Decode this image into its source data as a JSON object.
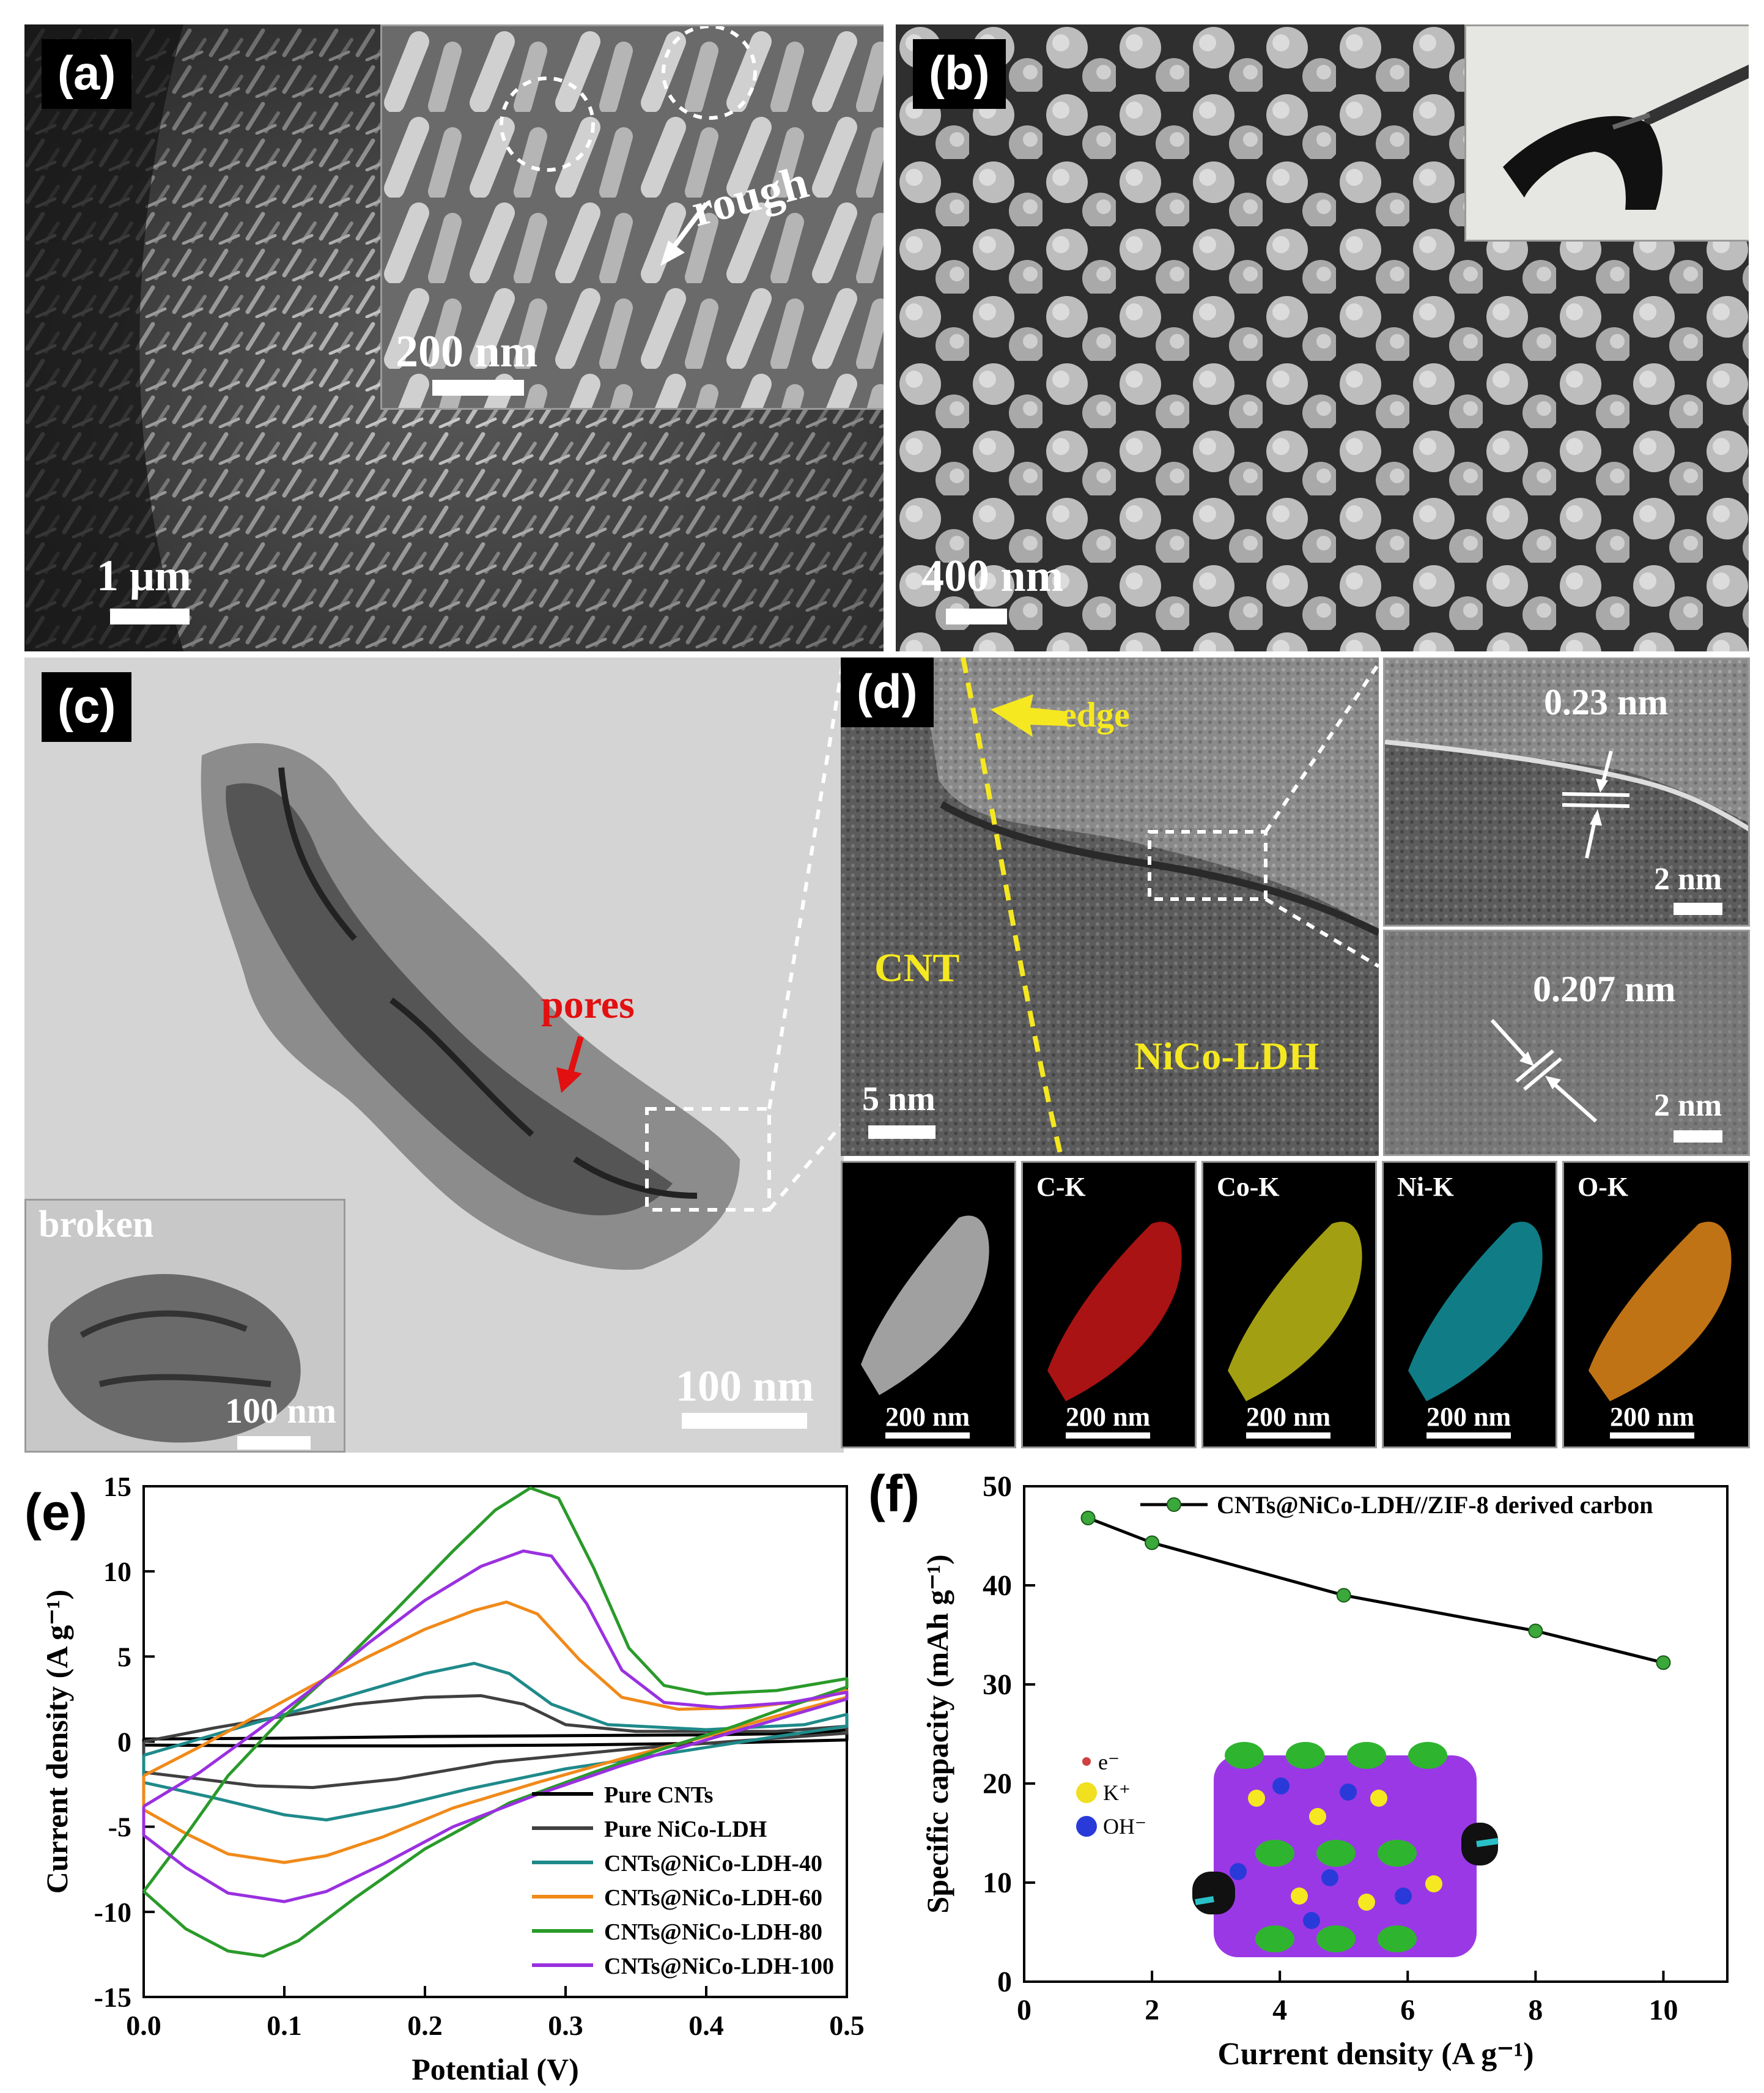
{
  "panels": {
    "a": {
      "letter": "(a)",
      "scale_bar": "1 μm",
      "inset_scale_bar": "200 nm",
      "inset_annotation": "rough"
    },
    "b": {
      "letter": "(b)",
      "scale_bar": "400 nm"
    },
    "c": {
      "letter": "(c)",
      "scale_bar": "100 nm",
      "annotation": "pores",
      "inset_label": "broken",
      "inset_scale_bar": "100 nm"
    },
    "d": {
      "letter": "(d)",
      "edge_label": "edge",
      "cnt_label": "CNT",
      "ldh_label": "NiCo-LDH",
      "scale_bar": "5 nm",
      "hr_top_spacing": "0.23 nm",
      "hr_top_scale": "2 nm",
      "hr_bottom_spacing": "0.207 nm",
      "hr_bottom_scale": "2 nm",
      "maps": [
        {
          "title": "",
          "scale": "200 nm",
          "color": "#ffffff"
        },
        {
          "title": "C-K",
          "scale": "200 nm",
          "color": "#e21a1a"
        },
        {
          "title": "Co-K",
          "scale": "200 nm",
          "color": "#e8e21a"
        },
        {
          "title": "Ni-K",
          "scale": "200 nm",
          "color": "#1ad0e0"
        },
        {
          "title": "O-K",
          "scale": "200 nm",
          "color": "#f0901a"
        }
      ]
    },
    "e": {
      "letter": "(e)"
    },
    "f": {
      "letter": "(f)",
      "inset_legend": [
        "e⁻",
        "K⁺",
        "OH⁻"
      ]
    }
  },
  "chart_data": [
    {
      "type": "line",
      "panel": "e",
      "xlabel": "Potential (V)",
      "ylabel": "Current density (A g⁻¹)",
      "xlim": [
        0.0,
        0.5
      ],
      "ylim": [
        -15,
        15
      ],
      "xticks": [
        "0.0",
        "0.1",
        "0.2",
        "0.3",
        "0.4",
        "0.5"
      ],
      "yticks": [
        "15",
        "10",
        "5",
        "0",
        "-5",
        "-10",
        "-15"
      ],
      "legend_position": "bottom-right",
      "grid": false,
      "series": [
        {
          "name": "Pure CNTs",
          "color": "#000000",
          "anodic": [
            [
              0.0,
              0.15
            ],
            [
              0.1,
              0.2
            ],
            [
              0.2,
              0.3
            ],
            [
              0.3,
              0.35
            ],
            [
              0.4,
              0.4
            ],
            [
              0.48,
              0.5
            ],
            [
              0.5,
              0.7
            ]
          ],
          "cathodic": [
            [
              0.5,
              0.1
            ],
            [
              0.4,
              -0.1
            ],
            [
              0.3,
              -0.2
            ],
            [
              0.2,
              -0.25
            ],
            [
              0.1,
              -0.25
            ],
            [
              0.0,
              -0.2
            ]
          ]
        },
        {
          "name": "Pure NiCo-LDH",
          "color": "#404040",
          "anodic": [
            [
              0.0,
              0.0
            ],
            [
              0.05,
              0.8
            ],
            [
              0.1,
              1.5
            ],
            [
              0.15,
              2.2
            ],
            [
              0.2,
              2.6
            ],
            [
              0.24,
              2.7
            ],
            [
              0.27,
              2.2
            ],
            [
              0.3,
              1.0
            ],
            [
              0.35,
              0.6
            ],
            [
              0.45,
              0.6
            ],
            [
              0.5,
              0.9
            ]
          ],
          "cathodic": [
            [
              0.5,
              0.5
            ],
            [
              0.45,
              0.2
            ],
            [
              0.35,
              -0.4
            ],
            [
              0.25,
              -1.2
            ],
            [
              0.18,
              -2.2
            ],
            [
              0.12,
              -2.7
            ],
            [
              0.08,
              -2.6
            ],
            [
              0.04,
              -2.2
            ],
            [
              0.0,
              -1.8
            ]
          ]
        },
        {
          "name": "CNTs@NiCo-LDH-40",
          "color": "#1f8a8a",
          "anodic": [
            [
              0.0,
              -0.8
            ],
            [
              0.05,
              0.4
            ],
            [
              0.1,
              1.6
            ],
            [
              0.15,
              2.8
            ],
            [
              0.2,
              4.0
            ],
            [
              0.235,
              4.6
            ],
            [
              0.26,
              4.0
            ],
            [
              0.29,
              2.2
            ],
            [
              0.33,
              1.0
            ],
            [
              0.4,
              0.7
            ],
            [
              0.47,
              1.0
            ],
            [
              0.5,
              1.6
            ]
          ],
          "cathodic": [
            [
              0.5,
              0.9
            ],
            [
              0.45,
              0.3
            ],
            [
              0.38,
              -0.6
            ],
            [
              0.3,
              -1.6
            ],
            [
              0.23,
              -2.8
            ],
            [
              0.18,
              -3.8
            ],
            [
              0.13,
              -4.6
            ],
            [
              0.1,
              -4.3
            ],
            [
              0.05,
              -3.3
            ],
            [
              0.0,
              -2.4
            ]
          ]
        },
        {
          "name": "CNTs@NiCo-LDH-60",
          "color": "#f08a1a",
          "anodic": [
            [
              0.0,
              -2.0
            ],
            [
              0.04,
              -0.3
            ],
            [
              0.08,
              1.5
            ],
            [
              0.12,
              3.3
            ],
            [
              0.16,
              5.0
            ],
            [
              0.2,
              6.6
            ],
            [
              0.235,
              7.7
            ],
            [
              0.258,
              8.2
            ],
            [
              0.28,
              7.5
            ],
            [
              0.31,
              4.8
            ],
            [
              0.34,
              2.6
            ],
            [
              0.38,
              1.9
            ],
            [
              0.43,
              2.0
            ],
            [
              0.48,
              2.5
            ],
            [
              0.5,
              3.0
            ]
          ],
          "cathodic": [
            [
              0.5,
              2.6
            ],
            [
              0.45,
              1.5
            ],
            [
              0.4,
              0.3
            ],
            [
              0.34,
              -1.0
            ],
            [
              0.28,
              -2.4
            ],
            [
              0.22,
              -3.9
            ],
            [
              0.17,
              -5.6
            ],
            [
              0.13,
              -6.7
            ],
            [
              0.1,
              -7.1
            ],
            [
              0.06,
              -6.6
            ],
            [
              0.03,
              -5.4
            ],
            [
              0.0,
              -4.0
            ]
          ]
        },
        {
          "name": "CNTs@NiCo-LDH-80",
          "color": "#2a9a2a",
          "anodic": [
            [
              0.0,
              -8.8
            ],
            [
              0.03,
              -5.5
            ],
            [
              0.06,
              -2.0
            ],
            [
              0.1,
              1.5
            ],
            [
              0.14,
              4.5
            ],
            [
              0.18,
              7.8
            ],
            [
              0.22,
              11.2
            ],
            [
              0.25,
              13.6
            ],
            [
              0.275,
              14.9
            ],
            [
              0.295,
              14.3
            ],
            [
              0.32,
              10.2
            ],
            [
              0.345,
              5.5
            ],
            [
              0.37,
              3.3
            ],
            [
              0.4,
              2.8
            ],
            [
              0.45,
              3.0
            ],
            [
              0.5,
              3.7
            ]
          ],
          "cathodic": [
            [
              0.5,
              3.2
            ],
            [
              0.46,
              2.1
            ],
            [
              0.42,
              0.9
            ],
            [
              0.37,
              -0.4
            ],
            [
              0.32,
              -1.8
            ],
            [
              0.26,
              -3.6
            ],
            [
              0.2,
              -6.3
            ],
            [
              0.15,
              -9.2
            ],
            [
              0.11,
              -11.7
            ],
            [
              0.085,
              -12.6
            ],
            [
              0.06,
              -12.3
            ],
            [
              0.03,
              -11.0
            ],
            [
              0.0,
              -8.8
            ]
          ]
        },
        {
          "name": "CNTs@NiCo-LDH-100",
          "color": "#9a30e0",
          "anodic": [
            [
              0.0,
              -3.8
            ],
            [
              0.04,
              -1.8
            ],
            [
              0.08,
              0.6
            ],
            [
              0.12,
              3.1
            ],
            [
              0.16,
              5.8
            ],
            [
              0.2,
              8.3
            ],
            [
              0.24,
              10.3
            ],
            [
              0.27,
              11.2
            ],
            [
              0.29,
              10.9
            ],
            [
              0.315,
              8.1
            ],
            [
              0.34,
              4.2
            ],
            [
              0.37,
              2.3
            ],
            [
              0.41,
              2.0
            ],
            [
              0.46,
              2.3
            ],
            [
              0.5,
              2.9
            ]
          ],
          "cathodic": [
            [
              0.5,
              2.5
            ],
            [
              0.45,
              1.3
            ],
            [
              0.4,
              0.1
            ],
            [
              0.34,
              -1.4
            ],
            [
              0.28,
              -3.1
            ],
            [
              0.22,
              -5.0
            ],
            [
              0.17,
              -7.2
            ],
            [
              0.13,
              -8.8
            ],
            [
              0.1,
              -9.4
            ],
            [
              0.06,
              -8.9
            ],
            [
              0.03,
              -7.4
            ],
            [
              0.0,
              -5.5
            ]
          ]
        }
      ]
    },
    {
      "type": "line",
      "panel": "f",
      "xlabel": "Current density (A g⁻¹)",
      "ylabel": "Specific capacity (mAh g⁻¹)",
      "xlim": [
        0,
        11
      ],
      "ylim": [
        0,
        50
      ],
      "xticks": [
        "0",
        "2",
        "4",
        "6",
        "8",
        "10"
      ],
      "yticks": [
        "50",
        "40",
        "30",
        "20",
        "10",
        "0"
      ],
      "legend_position": "top",
      "grid": false,
      "series": [
        {
          "name": "CNTs@NiCo-LDH//ZIF-8 derived carbon",
          "color": "#000000",
          "marker_color": "#3aa83a",
          "x": [
            1,
            2,
            5,
            8,
            10
          ],
          "y": [
            46.8,
            44.3,
            39.0,
            35.4,
            32.2
          ]
        }
      ]
    }
  ]
}
